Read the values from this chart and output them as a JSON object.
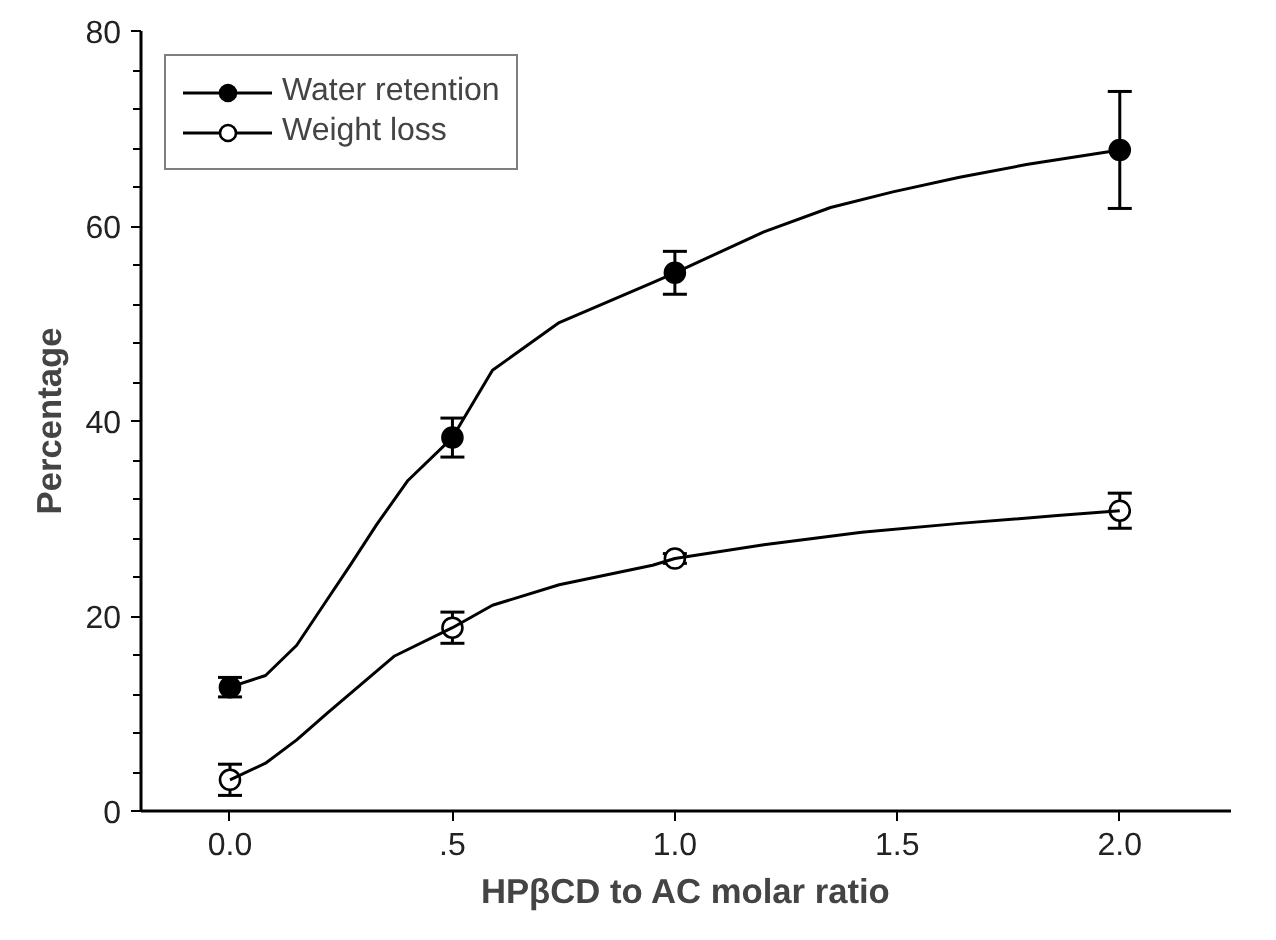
{
  "chart_data": {
    "type": "scatter",
    "xlabel": "HPβCD to AC molar ratio",
    "ylabel": "Percentage",
    "x": [
      0,
      0.5,
      1.0,
      2.0
    ],
    "series": [
      {
        "name": "Water retention",
        "color": "#000000",
        "marker": "circle",
        "values": [
          12.7,
          38.3,
          55.2,
          67.8
        ],
        "errors": [
          1.0,
          2.0,
          2.2,
          6.0
        ]
      },
      {
        "name": "Weight loss",
        "color": "#000000",
        "marker": "circle_open",
        "values": [
          3.2,
          18.8,
          25.9,
          30.8
        ],
        "errors": [
          1.6,
          1.6,
          0.5,
          1.8
        ]
      },
      {
        "type": "line",
        "color": "#000000",
        "x": [
          0,
          0.08,
          0.15,
          0.21,
          0.27,
          0.33,
          0.4,
          0.5,
          0.59,
          0.74,
          0.95,
          1.0,
          1.2,
          1.35,
          1.49,
          1.64,
          1.79,
          2.0
        ],
        "values": [
          12.7,
          13.9,
          17.0,
          21.1,
          25.2,
          29.4,
          33.9,
          38.3,
          45.2,
          50.1,
          54.2,
          55.2,
          59.4,
          61.9,
          63.5,
          65.0,
          66.3,
          67.8
        ]
      },
      {
        "type": "line",
        "color": "#000000",
        "x": [
          0,
          0.08,
          0.15,
          0.22,
          0.3,
          0.37,
          0.5,
          0.59,
          0.74,
          0.95,
          1.0,
          1.2,
          1.42,
          1.64,
          1.86,
          2.0
        ],
        "values": [
          3.2,
          4.9,
          7.3,
          10.1,
          13.2,
          15.9,
          18.8,
          21.1,
          23.2,
          25.2,
          25.9,
          27.3,
          28.6,
          29.5,
          30.3,
          30.8
        ]
      }
    ],
    "xlim": [
      -0.2,
      2.25
    ],
    "ylim": [
      0,
      80
    ],
    "xticks": [
      {
        "value": 0,
        "label": "0.0"
      },
      {
        "value": 0.5,
        "label": ".5"
      },
      {
        "value": 1.0,
        "label": "1.0"
      },
      1.5,
      {
        "value": 2.0,
        "label": "2.0"
      }
    ],
    "yticks": [
      0,
      20,
      40,
      60,
      80
    ],
    "line_style": "solid",
    "legend": "top left",
    "grid": false
  }
}
